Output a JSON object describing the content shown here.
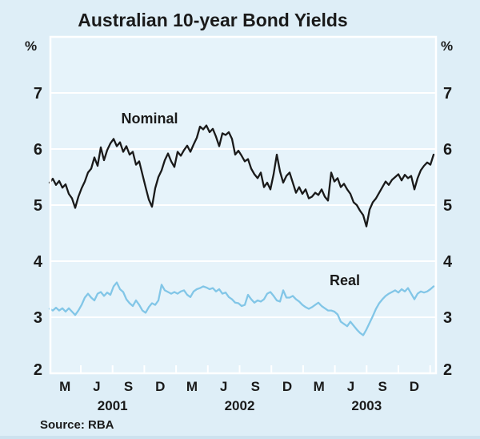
{
  "axis": {
    "unit_left": "%",
    "unit_right": "%",
    "yticks": [
      2,
      3,
      4,
      5,
      6,
      7
    ],
    "month_labels": [
      "M",
      "J",
      "S",
      "D",
      "M",
      "J",
      "S",
      "D",
      "M",
      "J",
      "S",
      "D"
    ],
    "year_labels": [
      "2001",
      "2002",
      "2003"
    ]
  },
  "colors": {
    "background": "#deeef7",
    "plot_background": "#e6f3fa",
    "grid": "#ffffff",
    "nominal": "#1a1a1a",
    "real": "#82c6e7",
    "text": "#1a1a1a",
    "bottom_strip": "#cde2ef"
  },
  "chart_data": {
    "type": "line",
    "title": "Australian 10-year Bond Yields",
    "ylabel": "%",
    "ylim": [
      2,
      8
    ],
    "yticks": [
      2,
      3,
      4,
      5,
      6,
      7
    ],
    "grid": "horizontal-white",
    "legend_position": "inline-labels",
    "x_start": "Jan-2001",
    "x_end": "Dec-2003",
    "x_tick_months": [
      "Mar-2001",
      "Jun-2001",
      "Sep-2001",
      "Dec-2001",
      "Mar-2002",
      "Jun-2002",
      "Sep-2002",
      "Dec-2002",
      "Mar-2003",
      "Jun-2003",
      "Sep-2003",
      "Dec-2003"
    ],
    "source": "Source: RBA",
    "series": [
      {
        "name": "Nominal",
        "color": "#1a1a1a",
        "values": [
          5.4,
          5.47,
          5.36,
          5.43,
          5.31,
          5.37,
          5.2,
          5.12,
          4.95,
          5.15,
          5.3,
          5.42,
          5.58,
          5.65,
          5.85,
          5.7,
          6.03,
          5.8,
          5.98,
          6.1,
          6.18,
          6.05,
          6.12,
          5.95,
          6.05,
          5.9,
          5.95,
          5.72,
          5.78,
          5.55,
          5.32,
          5.1,
          4.97,
          5.3,
          5.5,
          5.62,
          5.8,
          5.92,
          5.78,
          5.68,
          5.95,
          5.88,
          5.98,
          6.06,
          5.95,
          6.08,
          6.2,
          6.4,
          6.35,
          6.42,
          6.3,
          6.36,
          6.22,
          6.05,
          6.28,
          6.25,
          6.3,
          6.18,
          5.9,
          5.97,
          5.88,
          5.78,
          5.82,
          5.65,
          5.55,
          5.48,
          5.58,
          5.32,
          5.4,
          5.28,
          5.55,
          5.9,
          5.6,
          5.4,
          5.52,
          5.58,
          5.4,
          5.22,
          5.32,
          5.2,
          5.28,
          5.12,
          5.15,
          5.22,
          5.18,
          5.28,
          5.15,
          5.08,
          5.58,
          5.42,
          5.48,
          5.32,
          5.38,
          5.28,
          5.2,
          5.05,
          5.0,
          4.9,
          4.82,
          4.62,
          4.92,
          5.05,
          5.12,
          5.22,
          5.32,
          5.42,
          5.36,
          5.45,
          5.5,
          5.55,
          5.44,
          5.54,
          5.48,
          5.52,
          5.28,
          5.48,
          5.62,
          5.7,
          5.76,
          5.72,
          5.9
        ]
      },
      {
        "name": "Real",
        "color": "#82c6e7",
        "values": [
          3.15,
          3.12,
          3.17,
          3.12,
          3.16,
          3.1,
          3.16,
          3.1,
          3.04,
          3.12,
          3.22,
          3.35,
          3.42,
          3.35,
          3.3,
          3.42,
          3.45,
          3.38,
          3.44,
          3.4,
          3.55,
          3.62,
          3.5,
          3.45,
          3.32,
          3.25,
          3.2,
          3.3,
          3.22,
          3.12,
          3.08,
          3.18,
          3.25,
          3.22,
          3.3,
          3.58,
          3.48,
          3.45,
          3.42,
          3.45,
          3.42,
          3.46,
          3.48,
          3.4,
          3.36,
          3.46,
          3.5,
          3.52,
          3.55,
          3.53,
          3.5,
          3.52,
          3.46,
          3.5,
          3.42,
          3.44,
          3.36,
          3.32,
          3.26,
          3.25,
          3.2,
          3.22,
          3.4,
          3.32,
          3.26,
          3.3,
          3.28,
          3.32,
          3.42,
          3.45,
          3.38,
          3.3,
          3.28,
          3.48,
          3.35,
          3.35,
          3.38,
          3.32,
          3.28,
          3.22,
          3.18,
          3.15,
          3.18,
          3.22,
          3.26,
          3.2,
          3.16,
          3.12,
          3.12,
          3.1,
          3.05,
          2.92,
          2.88,
          2.84,
          2.92,
          2.85,
          2.78,
          2.72,
          2.68,
          2.78,
          2.9,
          3.02,
          3.15,
          3.25,
          3.32,
          3.38,
          3.42,
          3.45,
          3.48,
          3.44,
          3.5,
          3.46,
          3.52,
          3.42,
          3.32,
          3.42,
          3.46,
          3.44,
          3.46,
          3.5,
          3.55
        ]
      }
    ]
  }
}
